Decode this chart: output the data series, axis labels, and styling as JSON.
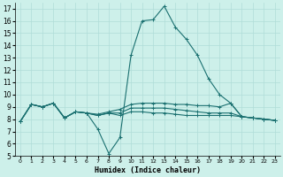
{
  "xlabel": "Humidex (Indice chaleur)",
  "background_color": "#cdf0ea",
  "line_color": "#1a7070",
  "grid_color": "#b0ddd8",
  "xlim": [
    -0.5,
    23.5
  ],
  "ylim": [
    5,
    17.5
  ],
  "yticks": [
    5,
    6,
    7,
    8,
    9,
    10,
    11,
    12,
    13,
    14,
    15,
    16,
    17
  ],
  "xticks": [
    0,
    1,
    2,
    3,
    4,
    5,
    6,
    7,
    8,
    9,
    10,
    11,
    12,
    13,
    14,
    15,
    16,
    17,
    18,
    19,
    20,
    21,
    22,
    23
  ],
  "lines": [
    {
      "x": [
        0,
        1,
        2,
        3,
        4,
        5,
        6,
        7,
        8,
        9,
        10,
        11,
        12,
        13,
        14,
        15,
        16,
        17,
        18,
        19,
        20,
        21,
        22,
        23
      ],
      "y": [
        7.8,
        9.2,
        9.0,
        9.3,
        8.1,
        8.6,
        8.5,
        7.2,
        5.2,
        6.5,
        13.2,
        16.0,
        16.1,
        17.2,
        15.5,
        14.5,
        13.2,
        11.3,
        10.0,
        9.3,
        8.2,
        8.1,
        8.0,
        7.9
      ]
    },
    {
      "x": [
        0,
        1,
        2,
        3,
        4,
        5,
        6,
        7,
        8,
        9,
        10,
        11,
        12,
        13,
        14,
        15,
        16,
        17,
        18,
        19,
        20,
        21,
        22,
        23
      ],
      "y": [
        7.8,
        9.2,
        9.0,
        9.3,
        8.1,
        8.6,
        8.5,
        8.4,
        8.6,
        8.8,
        9.2,
        9.3,
        9.3,
        9.3,
        9.2,
        9.2,
        9.1,
        9.1,
        9.0,
        9.3,
        8.2,
        8.1,
        8.0,
        7.9
      ]
    },
    {
      "x": [
        0,
        1,
        2,
        3,
        4,
        5,
        6,
        7,
        8,
        9,
        10,
        11,
        12,
        13,
        14,
        15,
        16,
        17,
        18,
        19,
        20,
        21,
        22,
        23
      ],
      "y": [
        7.8,
        9.2,
        9.0,
        9.3,
        8.1,
        8.6,
        8.5,
        8.3,
        8.5,
        8.5,
        8.9,
        8.9,
        8.9,
        8.9,
        8.8,
        8.7,
        8.6,
        8.5,
        8.5,
        8.5,
        8.2,
        8.1,
        8.0,
        7.9
      ]
    },
    {
      "x": [
        0,
        1,
        2,
        3,
        4,
        5,
        6,
        7,
        8,
        9,
        10,
        11,
        12,
        13,
        14,
        15,
        16,
        17,
        18,
        19,
        20,
        21,
        22,
        23
      ],
      "y": [
        7.8,
        9.2,
        9.0,
        9.3,
        8.1,
        8.6,
        8.5,
        8.3,
        8.5,
        8.3,
        8.6,
        8.6,
        8.5,
        8.5,
        8.4,
        8.3,
        8.3,
        8.3,
        8.3,
        8.3,
        8.2,
        8.1,
        8.0,
        7.9
      ]
    }
  ]
}
